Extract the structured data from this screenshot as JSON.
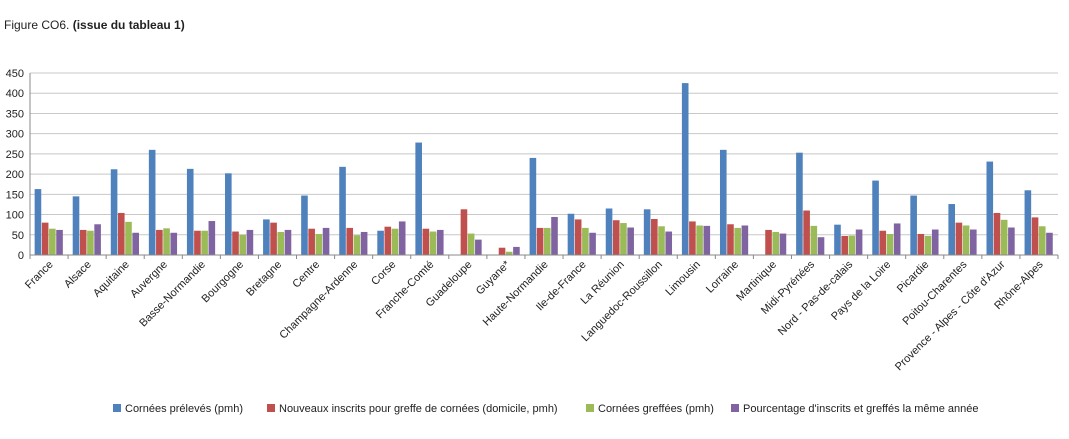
{
  "figure": {
    "number": "Figure CO6.",
    "subtitle": "(issue du tableau 1)"
  },
  "chart_data": {
    "type": "bar",
    "title": "",
    "xlabel": "",
    "ylabel": "",
    "ylim": [
      0,
      450
    ],
    "yticks": [
      0,
      50,
      100,
      150,
      200,
      250,
      300,
      350,
      400,
      450
    ],
    "grid": true,
    "legend_position": "bottom",
    "categories": [
      "France",
      "Alsace",
      "Aquitaine",
      "Auvergne",
      "Basse-Normandie",
      "Bourgogne",
      "Bretagne",
      "Centre",
      "Champagne-Ardenne",
      "Corse",
      "Franche-Comté",
      "Guadeloupe",
      "Guyane*",
      "Haute-Normandie",
      "Ile-de-France",
      "La Réunion",
      "Languedoc-Roussillon",
      "Limousin",
      "Lorraine",
      "Martinique",
      "Midi-Pyrénées",
      "Nord - Pas-de-calais",
      "Pays de la Loire",
      "Picardie",
      "Poitou-Charentes",
      "Provence - Alpes - Côte d'Azur",
      "Rhône-Alpes"
    ],
    "series": [
      {
        "name": "Cornées prélevés (pmh)",
        "color": "#4F81BD",
        "values": [
          163,
          145,
          212,
          260,
          213,
          202,
          88,
          147,
          218,
          60,
          278,
          0,
          0,
          240,
          102,
          115,
          113,
          425,
          260,
          0,
          253,
          75,
          184,
          147,
          126,
          231,
          160
        ]
      },
      {
        "name": "Nouveaux inscrits pour greffe de cornées (domicile, pmh)",
        "color": "#C0504D",
        "values": [
          80,
          62,
          104,
          62,
          60,
          58,
          80,
          65,
          67,
          70,
          65,
          113,
          18,
          67,
          88,
          86,
          89,
          83,
          76,
          62,
          110,
          47,
          60,
          52,
          80,
          104,
          93
        ]
      },
      {
        "name": "Cornées greffées (pmh)",
        "color": "#9BBB59",
        "values": [
          65,
          60,
          82,
          66,
          60,
          50,
          57,
          52,
          49,
          65,
          58,
          53,
          8,
          67,
          67,
          79,
          71,
          73,
          67,
          57,
          72,
          48,
          52,
          47,
          73,
          87,
          71
        ]
      },
      {
        "name": "Pourcentage d'inscrits et greffés la même année",
        "color": "#8064A2",
        "values": [
          62,
          76,
          55,
          55,
          84,
          62,
          62,
          67,
          57,
          83,
          62,
          38,
          20,
          94,
          55,
          68,
          58,
          72,
          73,
          53,
          44,
          63,
          78,
          63,
          63,
          68,
          55
        ]
      }
    ]
  }
}
